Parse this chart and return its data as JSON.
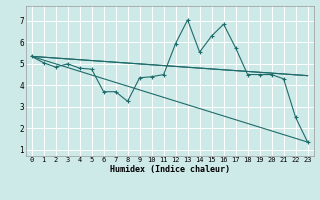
{
  "title": "",
  "xlabel": "Humidex (Indice chaleur)",
  "bg_color": "#ceeae8",
  "grid_color": "#ffffff",
  "line_color": "#1e6b6b",
  "xlim": [
    -0.5,
    23.5
  ],
  "ylim": [
    0.7,
    7.7
  ],
  "xticks": [
    0,
    1,
    2,
    3,
    4,
    5,
    6,
    7,
    8,
    9,
    10,
    11,
    12,
    13,
    14,
    15,
    16,
    17,
    18,
    19,
    20,
    21,
    22,
    23
  ],
  "yticks": [
    1,
    2,
    3,
    4,
    5,
    6,
    7
  ],
  "line1_x": [
    0,
    1,
    2,
    3,
    4,
    5,
    6,
    7,
    8,
    9,
    10,
    11,
    12,
    13,
    14,
    15,
    16,
    17,
    18,
    19,
    20,
    21,
    22,
    23
  ],
  "line1_y": [
    5.35,
    5.05,
    4.85,
    5.0,
    4.8,
    4.75,
    3.7,
    3.7,
    3.25,
    4.35,
    4.4,
    4.5,
    5.95,
    7.05,
    5.55,
    6.3,
    6.85,
    5.75,
    4.5,
    4.5,
    4.5,
    4.3,
    2.5,
    1.35
  ],
  "line2_x": [
    0,
    23
  ],
  "line2_y": [
    5.35,
    1.35
  ],
  "line3_x": [
    0,
    23
  ],
  "line3_y": [
    5.35,
    4.45
  ],
  "line4_x": [
    0,
    23
  ],
  "line4_y": [
    5.35,
    4.45
  ],
  "xlabel_fontsize": 6.0,
  "tick_fontsize_x": 5.0,
  "tick_fontsize_y": 5.5
}
